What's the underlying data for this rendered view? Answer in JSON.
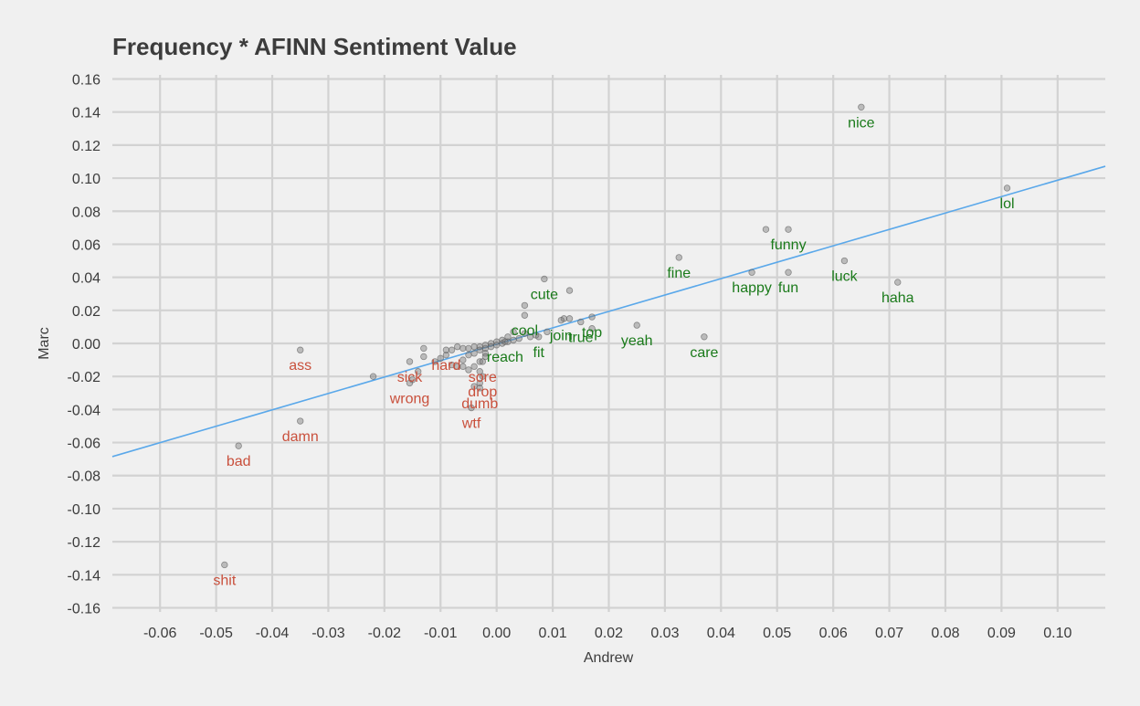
{
  "chart_data": {
    "type": "scatter",
    "title": "Frequency * AFINN Sentiment Value",
    "xlabel": "Andrew",
    "ylabel": "Marc",
    "xlim": [
      -0.0685,
      0.1085
    ],
    "ylim": [
      -0.1625,
      0.1625
    ],
    "xticks": [
      -0.06,
      -0.05,
      -0.04,
      -0.03,
      -0.02,
      -0.01,
      0.0,
      0.01,
      0.02,
      0.03,
      0.04,
      0.05,
      0.06,
      0.07,
      0.08,
      0.09,
      0.1
    ],
    "xtick_labels": [
      "-0.06",
      "-0.05",
      "-0.04",
      "-0.03",
      "-0.02",
      "-0.01",
      "0.00",
      "0.01",
      "0.02",
      "0.03",
      "0.04",
      "0.05",
      "0.06",
      "0.07",
      "0.08",
      "0.09",
      "0.10"
    ],
    "yticks": [
      -0.16,
      -0.14,
      -0.12,
      -0.1,
      -0.08,
      -0.06,
      -0.04,
      -0.02,
      0.0,
      0.02,
      0.04,
      0.06,
      0.08,
      0.1,
      0.12,
      0.14,
      0.16
    ],
    "ytick_labels": [
      "-0.16",
      "-0.14",
      "-0.12",
      "-0.10",
      "-0.08",
      "-0.06",
      "-0.04",
      "-0.02",
      "0.00",
      "0.02",
      "0.04",
      "0.06",
      "0.08",
      "0.10",
      "0.12",
      "0.14",
      "0.16"
    ],
    "grid": true,
    "colors": {
      "background": "#f0f0f0",
      "grid": "#d2d2d2",
      "point": "#7a7a7a",
      "positive": "#1a7a1a",
      "negative": "#c9503c",
      "fit_line": "#5aa8ea",
      "text": "#3c3c3c"
    },
    "fit_line": {
      "x": [
        -0.0685,
        0.1085
      ],
      "y": [
        -0.0685,
        0.1072
      ]
    },
    "labeled_points": [
      {
        "label": "nice",
        "x": 0.065,
        "y": 0.143,
        "sentiment": "positive"
      },
      {
        "label": "lol",
        "x": 0.091,
        "y": 0.094,
        "sentiment": "positive"
      },
      {
        "label": "funny",
        "x": 0.052,
        "y": 0.069,
        "sentiment": "positive"
      },
      {
        "label": "luck",
        "x": 0.062,
        "y": 0.05,
        "sentiment": "positive"
      },
      {
        "label": "haha",
        "x": 0.0715,
        "y": 0.037,
        "sentiment": "positive"
      },
      {
        "label": "fine",
        "x": 0.0325,
        "y": 0.052,
        "sentiment": "positive"
      },
      {
        "label": "happy",
        "x": 0.0455,
        "y": 0.043,
        "sentiment": "positive"
      },
      {
        "label": "fun",
        "x": 0.052,
        "y": 0.043,
        "sentiment": "positive"
      },
      {
        "label": "cute",
        "x": 0.0085,
        "y": 0.039,
        "sentiment": "positive"
      },
      {
        "label": "cool",
        "x": 0.005,
        "y": 0.017,
        "sentiment": "positive"
      },
      {
        "label": "join",
        "x": 0.0115,
        "y": 0.014,
        "sentiment": "positive"
      },
      {
        "label": "top",
        "x": 0.017,
        "y": 0.016,
        "sentiment": "positive"
      },
      {
        "label": "yeah",
        "x": 0.025,
        "y": 0.011,
        "sentiment": "positive"
      },
      {
        "label": "true",
        "x": 0.015,
        "y": 0.013,
        "sentiment": "positive"
      },
      {
        "label": "fit",
        "x": 0.0075,
        "y": 0.004,
        "sentiment": "positive"
      },
      {
        "label": "care",
        "x": 0.037,
        "y": 0.004,
        "sentiment": "positive"
      },
      {
        "label": "reach",
        "x": 0.0015,
        "y": 0.001,
        "sentiment": "positive"
      },
      {
        "label": "ass",
        "x": -0.035,
        "y": -0.004,
        "sentiment": "negative"
      },
      {
        "label": "sick",
        "x": -0.0155,
        "y": -0.011,
        "sentiment": "negative"
      },
      {
        "label": "hard",
        "x": -0.009,
        "y": -0.004,
        "sentiment": "negative"
      },
      {
        "label": "sore",
        "x": -0.0025,
        "y": -0.011,
        "sentiment": "negative"
      },
      {
        "label": "wrong",
        "x": -0.0155,
        "y": -0.024,
        "sentiment": "negative"
      },
      {
        "label": "drop",
        "x": -0.0025,
        "y": -0.02,
        "sentiment": "negative"
      },
      {
        "label": "dumb",
        "x": -0.003,
        "y": -0.027,
        "sentiment": "negative"
      },
      {
        "label": "wtf",
        "x": -0.0045,
        "y": -0.039,
        "sentiment": "negative"
      },
      {
        "label": "damn",
        "x": -0.035,
        "y": -0.047,
        "sentiment": "negative"
      },
      {
        "label": "bad",
        "x": -0.046,
        "y": -0.062,
        "sentiment": "negative"
      },
      {
        "label": "shit",
        "x": -0.0485,
        "y": -0.134,
        "sentiment": "negative"
      }
    ],
    "unlabeled_points": [
      {
        "x": 0.048,
        "y": 0.069
      },
      {
        "x": 0.005,
        "y": 0.023
      },
      {
        "x": 0.013,
        "y": 0.032
      },
      {
        "x": 0.012,
        "y": 0.015
      },
      {
        "x": 0.013,
        "y": 0.015
      },
      {
        "x": 0.017,
        "y": 0.009
      },
      {
        "x": 0.009,
        "y": 0.007
      },
      {
        "x": 0.007,
        "y": 0.005
      },
      {
        "x": 0.006,
        "y": 0.004
      },
      {
        "x": 0.005,
        "y": 0.006
      },
      {
        "x": 0.004,
        "y": 0.003
      },
      {
        "x": 0.003,
        "y": 0.007
      },
      {
        "x": 0.003,
        "y": 0.002
      },
      {
        "x": 0.002,
        "y": 0.004
      },
      {
        "x": 0.002,
        "y": 0.001
      },
      {
        "x": 0.001,
        "y": 0.002
      },
      {
        "x": 0.001,
        "y": 0.0
      },
      {
        "x": 0.0,
        "y": 0.001
      },
      {
        "x": 0.0,
        "y": -0.001
      },
      {
        "x": -0.001,
        "y": 0.0
      },
      {
        "x": -0.001,
        "y": -0.002
      },
      {
        "x": -0.002,
        "y": -0.001
      },
      {
        "x": -0.002,
        "y": -0.003
      },
      {
        "x": -0.003,
        "y": -0.002
      },
      {
        "x": -0.003,
        "y": -0.004
      },
      {
        "x": -0.004,
        "y": -0.002
      },
      {
        "x": -0.004,
        "y": -0.006
      },
      {
        "x": -0.005,
        "y": -0.003
      },
      {
        "x": -0.005,
        "y": -0.007
      },
      {
        "x": -0.006,
        "y": -0.003
      },
      {
        "x": -0.006,
        "y": -0.01
      },
      {
        "x": -0.006,
        "y": -0.014
      },
      {
        "x": -0.007,
        "y": -0.014
      },
      {
        "x": -0.007,
        "y": -0.002
      },
      {
        "x": -0.008,
        "y": -0.013
      },
      {
        "x": -0.008,
        "y": -0.004
      },
      {
        "x": -0.009,
        "y": -0.007
      },
      {
        "x": -0.01,
        "y": -0.009
      },
      {
        "x": -0.011,
        "y": -0.011
      },
      {
        "x": -0.013,
        "y": -0.003
      },
      {
        "x": -0.013,
        "y": -0.008
      },
      {
        "x": -0.014,
        "y": -0.017
      },
      {
        "x": -0.015,
        "y": -0.022
      },
      {
        "x": -0.022,
        "y": -0.02
      },
      {
        "x": -0.002,
        "y": -0.006
      },
      {
        "x": -0.002,
        "y": -0.008
      },
      {
        "x": -0.003,
        "y": -0.011
      },
      {
        "x": -0.003,
        "y": -0.017
      },
      {
        "x": -0.003,
        "y": -0.024
      },
      {
        "x": -0.004,
        "y": -0.014
      },
      {
        "x": -0.004,
        "y": -0.026
      },
      {
        "x": -0.005,
        "y": -0.016
      }
    ]
  }
}
